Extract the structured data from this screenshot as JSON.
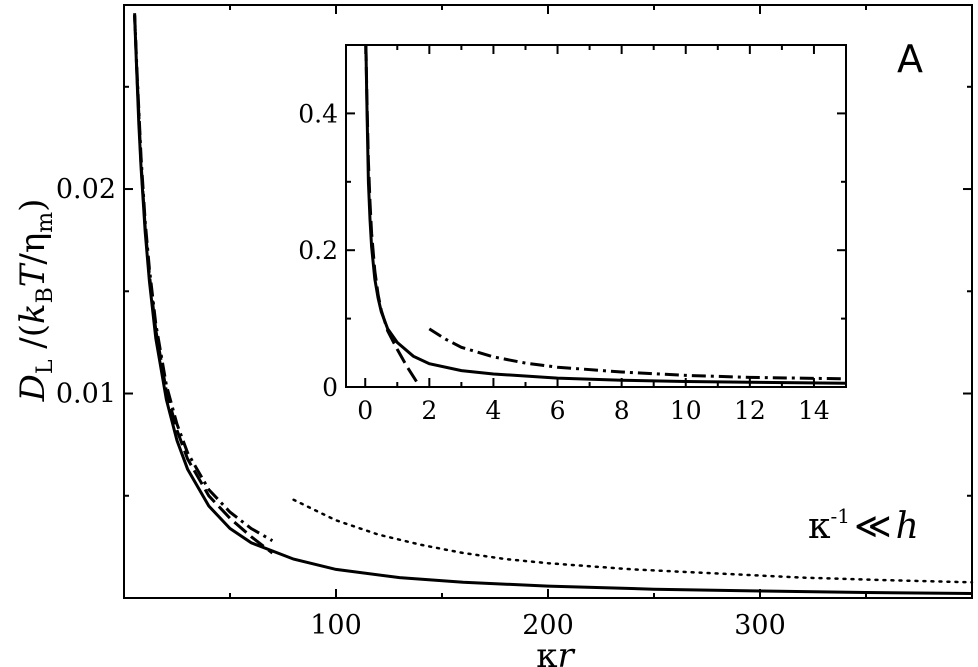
{
  "chart_data": [
    {
      "id": "main",
      "type": "line",
      "panel_label": "A",
      "annotation": {
        "kappa": "κ",
        "exp": "-1",
        "rel": "≪",
        "h": "h"
      },
      "xlabel": {
        "main": "κ",
        "italic": "r"
      },
      "ylabel": {
        "D": "D",
        "L": "L",
        "open": " /(",
        "k": "k",
        "B": "B",
        "T": "T",
        "slash": "/",
        "eta": "η",
        "m": "m",
        "close": ")"
      },
      "xlim": [
        0,
        400
      ],
      "ylim": [
        0,
        0.029
      ],
      "xticks": [
        100,
        200,
        300
      ],
      "xtick_labels": [
        "100",
        "200",
        "300"
      ],
      "yticks": [
        0.01,
        0.02
      ],
      "ytick_labels": [
        "0.01",
        "0.02"
      ],
      "x_minor_ticks": [
        50,
        150,
        250,
        350
      ],
      "y_minor_ticks": [
        0.005,
        0.015,
        0.025
      ],
      "series": [
        {
          "style": "solid",
          "x": [
            5,
            6,
            7,
            8,
            10,
            12,
            15,
            20,
            25,
            30,
            40,
            50,
            60,
            80,
            100,
            130,
            160,
            200,
            250,
            300,
            350,
            400
          ],
          "y": [
            0.0285,
            0.0258,
            0.0232,
            0.0211,
            0.0179,
            0.0155,
            0.0127,
            0.0097,
            0.0077,
            0.0063,
            0.0045,
            0.0034,
            0.0027,
            0.0019,
            0.0014,
            0.001,
            0.00077,
            0.00058,
            0.00043,
            0.00034,
            0.00027,
            0.00022
          ]
        },
        {
          "style": "dashed",
          "x": [
            5,
            6,
            8,
            10,
            12,
            15,
            20,
            25,
            30,
            40,
            50,
            60,
            70
          ],
          "y": [
            0.0285,
            0.0259,
            0.0213,
            0.0181,
            0.0158,
            0.0131,
            0.0101,
            0.0082,
            0.0068,
            0.005,
            0.0039,
            0.003,
            0.0022
          ]
        },
        {
          "style": "dashdot",
          "x": [
            5,
            6,
            8,
            10,
            12,
            15,
            20,
            25,
            30,
            40,
            50,
            60,
            70
          ],
          "y": [
            0.0286,
            0.0261,
            0.0216,
            0.0184,
            0.0161,
            0.0134,
            0.0104,
            0.0085,
            0.0071,
            0.0053,
            0.0042,
            0.0034,
            0.0028
          ]
        },
        {
          "style": "dotted",
          "x": [
            80,
            90,
            100,
            120,
            140,
            160,
            180,
            200,
            240,
            280,
            320,
            360,
            400
          ],
          "y": [
            0.0048,
            0.0043,
            0.0038,
            0.0031,
            0.0026,
            0.0022,
            0.0019,
            0.0017,
            0.0014,
            0.0012,
            0.001,
            0.00087,
            0.00077
          ]
        }
      ]
    },
    {
      "id": "inset",
      "type": "line",
      "xlim": [
        -0.6,
        15
      ],
      "ylim": [
        0,
        0.5
      ],
      "xticks": [
        0,
        2,
        4,
        6,
        8,
        10,
        12,
        14
      ],
      "xtick_labels": [
        "0",
        "2",
        "4",
        "6",
        "8",
        "10",
        "12",
        "14"
      ],
      "yticks": [
        0,
        0.2,
        0.4
      ],
      "ytick_labels": [
        "0",
        "0.2",
        "0.4"
      ],
      "x_minor_ticks": [
        1,
        3,
        5,
        7,
        9,
        11,
        13
      ],
      "y_minor_ticks": [
        0.1,
        0.3
      ],
      "series": [
        {
          "style": "solid",
          "x": [
            0.02,
            0.05,
            0.1,
            0.15,
            0.2,
            0.3,
            0.4,
            0.5,
            0.7,
            1,
            1.5,
            2,
            3,
            4,
            6,
            8,
            10,
            12,
            15
          ],
          "y": [
            0.5,
            0.42,
            0.3,
            0.245,
            0.205,
            0.158,
            0.13,
            0.11,
            0.085,
            0.065,
            0.045,
            0.034,
            0.024,
            0.019,
            0.013,
            0.01,
            0.008,
            0.007,
            0.0055
          ]
        },
        {
          "style": "dashed",
          "x": [
            0.02,
            0.05,
            0.1,
            0.15,
            0.2,
            0.3,
            0.4,
            0.5,
            0.7,
            1,
            1.3,
            1.6
          ],
          "y": [
            0.5,
            0.43,
            0.33,
            0.27,
            0.225,
            0.17,
            0.135,
            0.112,
            0.082,
            0.055,
            0.03,
            0.008
          ]
        },
        {
          "style": "dashdot",
          "x": [
            2,
            2.5,
            3,
            4,
            5,
            6,
            8,
            10,
            12,
            15
          ],
          "y": [
            0.085,
            0.07,
            0.058,
            0.044,
            0.035,
            0.029,
            0.022,
            0.017,
            0.014,
            0.012
          ]
        }
      ]
    }
  ]
}
